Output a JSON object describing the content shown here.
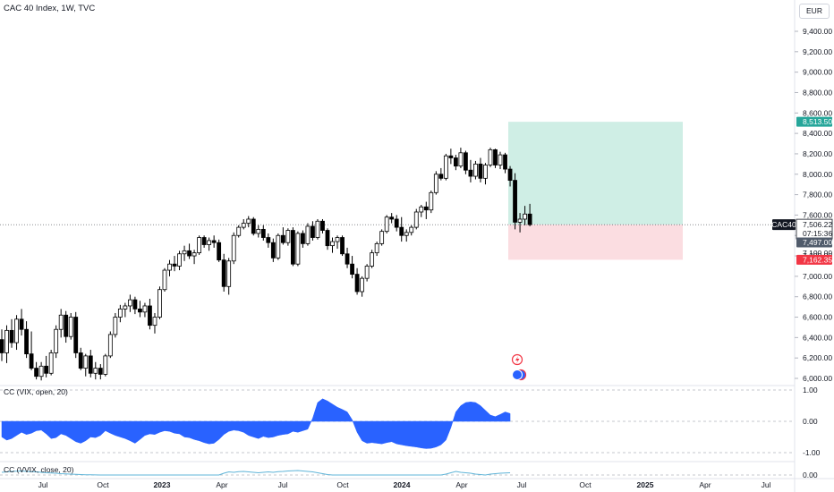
{
  "header": {
    "title": "CAC 40 Index, 1W, TVC",
    "currency": "EUR"
  },
  "indicators": [
    {
      "label": "CC (VIX, open, 20)"
    },
    {
      "label": "CC (VVIX, close, 20)"
    }
  ],
  "price_tags": {
    "symbol": "CAC40",
    "last_price": "7,506.22",
    "countdown": "07:15:36",
    "level_1": "7,497.00",
    "target": "8,513.50",
    "stop": "7,162.35",
    "hidden": "7,100.00"
  },
  "colors": {
    "up": "#ffffff",
    "down": "#000000",
    "candle_outline": "#000000",
    "profit_zone": "#cfeee5",
    "loss_zone": "#fbdde1",
    "target_tag": "#26a69a",
    "stop_tag": "#f23645",
    "oscillator_fill": "#2962ff",
    "vvix_line": "#5fb4d8",
    "grid_dashed": "#b2b5be"
  },
  "chart_data": [
    {
      "type": "candlestick",
      "title": "CAC 40 Index, 1W, TVC",
      "y_axis_ticks": [
        "9,400.00",
        "9,200.00",
        "9,000.00",
        "8,800.00",
        "8,600.00",
        "8,400.00",
        "8,200.00",
        "8,000.00",
        "7,800.00",
        "7,600.00",
        "7,400.00",
        "7,200.00",
        "7,000.00",
        "6,800.00",
        "6,600.00",
        "6,400.00",
        "6,200.00",
        "6,000.00"
      ],
      "x_axis_ticks": [
        "Jul",
        "Oct",
        "2023",
        "Apr",
        "Jul",
        "Oct",
        "2024",
        "Apr",
        "Jul",
        "Oct",
        "2025",
        "Apr",
        "Jul"
      ],
      "ylim": [
        5960,
        9520
      ],
      "series": [
        {
          "ohlc": [
            [
              6380,
              6480,
              6170,
              6250
            ],
            [
              6250,
              6520,
              6150,
              6470
            ],
            [
              6470,
              6580,
              6300,
              6350
            ],
            [
              6350,
              6620,
              6280,
              6580
            ],
            [
              6580,
              6680,
              6420,
              6480
            ],
            [
              6480,
              6560,
              6200,
              6240
            ],
            [
              6240,
              6460,
              6080,
              6100
            ],
            [
              6100,
              6160,
              5990,
              6020
            ],
            [
              6020,
              6160,
              5980,
              6120
            ],
            [
              6120,
              6220,
              6010,
              6050
            ],
            [
              6050,
              6280,
              6030,
              6250
            ],
            [
              6250,
              6520,
              6200,
              6480
            ],
            [
              6480,
              6680,
              6400,
              6620
            ],
            [
              6620,
              6660,
              6350,
              6410
            ],
            [
              6410,
              6640,
              6380,
              6600
            ],
            [
              6600,
              6650,
              6200,
              6250
            ],
            [
              6250,
              6300,
              6080,
              6100
            ],
            [
              6100,
              6240,
              6020,
              6220
            ],
            [
              6220,
              6280,
              6010,
              6050
            ],
            [
              6050,
              6160,
              5990,
              6100
            ],
            [
              6100,
              6140,
              5990,
              6040
            ],
            [
              6040,
              6240,
              6020,
              6220
            ],
            [
              6220,
              6460,
              6200,
              6430
            ],
            [
              6430,
              6640,
              6400,
              6600
            ],
            [
              6600,
              6720,
              6550,
              6680
            ],
            [
              6680,
              6740,
              6600,
              6710
            ],
            [
              6710,
              6820,
              6650,
              6770
            ],
            [
              6770,
              6800,
              6630,
              6680
            ],
            [
              6680,
              6760,
              6600,
              6650
            ],
            [
              6650,
              6740,
              6600,
              6710
            ],
            [
              6710,
              6780,
              6480,
              6520
            ],
            [
              6520,
              6640,
              6440,
              6600
            ],
            [
              6600,
              6900,
              6580,
              6870
            ],
            [
              6870,
              7080,
              6850,
              7060
            ],
            [
              7060,
              7160,
              7000,
              7120
            ],
            [
              7120,
              7200,
              7050,
              7100
            ],
            [
              7100,
              7250,
              7060,
              7220
            ],
            [
              7220,
              7300,
              7150,
              7250
            ],
            [
              7250,
              7320,
              7170,
              7200
            ],
            [
              7200,
              7260,
              7120,
              7230
            ],
            [
              7230,
              7400,
              7210,
              7380
            ],
            [
              7380,
              7400,
              7280,
              7310
            ],
            [
              7310,
              7380,
              7250,
              7350
            ],
            [
              7350,
              7400,
              7280,
              7330
            ],
            [
              7330,
              7360,
              7140,
              7160
            ],
            [
              7160,
              7220,
              6850,
              6900
            ],
            [
              6900,
              7180,
              6820,
              7150
            ],
            [
              7150,
              7430,
              7120,
              7400
            ],
            [
              7400,
              7500,
              7380,
              7480
            ],
            [
              7480,
              7560,
              7460,
              7520
            ],
            [
              7520,
              7590,
              7480,
              7560
            ],
            [
              7560,
              7580,
              7400,
              7420
            ],
            [
              7420,
              7500,
              7380,
              7460
            ],
            [
              7460,
              7500,
              7350,
              7380
            ],
            [
              7380,
              7420,
              7280,
              7330
            ],
            [
              7330,
              7370,
              7140,
              7180
            ],
            [
              7180,
              7420,
              7160,
              7400
            ],
            [
              7400,
              7480,
              7310,
              7330
            ],
            [
              7330,
              7470,
              7300,
              7450
            ],
            [
              7450,
              7480,
              7100,
              7120
            ],
            [
              7120,
              7440,
              7100,
              7420
            ],
            [
              7420,
              7450,
              7280,
              7320
            ],
            [
              7320,
              7520,
              7300,
              7490
            ],
            [
              7490,
              7540,
              7350,
              7380
            ],
            [
              7380,
              7560,
              7360,
              7540
            ],
            [
              7540,
              7560,
              7420,
              7450
            ],
            [
              7450,
              7470,
              7260,
              7300
            ],
            [
              7300,
              7380,
              7230,
              7340
            ],
            [
              7340,
              7400,
              7270,
              7380
            ],
            [
              7380,
              7400,
              7200,
              7220
            ],
            [
              7220,
              7280,
              7080,
              7120
            ],
            [
              7120,
              7200,
              6980,
              7020
            ],
            [
              7020,
              7080,
              6820,
              6850
            ],
            [
              6850,
              7000,
              6800,
              6980
            ],
            [
              6980,
              7120,
              6950,
              7100
            ],
            [
              7100,
              7260,
              7080,
              7230
            ],
            [
              7230,
              7340,
              7200,
              7320
            ],
            [
              7320,
              7460,
              7300,
              7440
            ],
            [
              7440,
              7600,
              7420,
              7580
            ],
            [
              7580,
              7620,
              7520,
              7560
            ],
            [
              7560,
              7600,
              7440,
              7480
            ],
            [
              7480,
              7580,
              7340,
              7400
            ],
            [
              7400,
              7460,
              7340,
              7430
            ],
            [
              7430,
              7500,
              7400,
              7480
            ],
            [
              7480,
              7660,
              7460,
              7630
            ],
            [
              7630,
              7700,
              7580,
              7680
            ],
            [
              7680,
              7730,
              7560,
              7650
            ],
            [
              7650,
              7840,
              7620,
              7820
            ],
            [
              7820,
              8030,
              7800,
              8000
            ],
            [
              8000,
              8060,
              7940,
              7960
            ],
            [
              7960,
              8200,
              7940,
              8180
            ],
            [
              8180,
              8250,
              8100,
              8160
            ],
            [
              8160,
              8190,
              8040,
              8080
            ],
            [
              8080,
              8260,
              8060,
              8210
            ],
            [
              8210,
              8230,
              8000,
              8040
            ],
            [
              8040,
              8140,
              7920,
              7980
            ],
            [
              7980,
              8130,
              7950,
              8100
            ],
            [
              8100,
              8160,
              7920,
              7960
            ],
            [
              7960,
              8110,
              7900,
              8090
            ],
            [
              8090,
              8260,
              8070,
              8240
            ],
            [
              8240,
              8250,
              8060,
              8090
            ],
            [
              8090,
              8220,
              8050,
              8190
            ],
            [
              8190,
              8210,
              8010,
              8050
            ],
            [
              8050,
              8080,
              7880,
              7940
            ],
            [
              7940,
              8010,
              7460,
              7530
            ],
            [
              7530,
              7620,
              7430,
              7560
            ],
            [
              7560,
              7690,
              7500,
              7610
            ],
            [
              7610,
              7710,
              7490,
              7506.22
            ]
          ]
        }
      ],
      "position": {
        "target": 8513.5,
        "entry": 7506.22,
        "stop": 7162.35
      }
    },
    {
      "type": "area",
      "title": "CC (VIX, open, 20)",
      "y_axis_ticks": [
        "1.00",
        "0.00",
        "-1.00"
      ],
      "ylim": [
        -1.25,
        1.25
      ],
      "values": [
        -0.5,
        -0.6,
        -0.55,
        -0.45,
        -0.35,
        -0.42,
        -0.38,
        -0.3,
        -0.28,
        -0.4,
        -0.55,
        -0.52,
        -0.4,
        -0.45,
        -0.55,
        -0.65,
        -0.7,
        -0.62,
        -0.5,
        -0.52,
        -0.45,
        -0.3,
        -0.38,
        -0.45,
        -0.5,
        -0.55,
        -0.62,
        -0.7,
        -0.58,
        -0.45,
        -0.4,
        -0.42,
        -0.35,
        -0.3,
        -0.32,
        -0.38,
        -0.4,
        -0.5,
        -0.52,
        -0.58,
        -0.62,
        -0.68,
        -0.72,
        -0.7,
        -0.58,
        -0.42,
        -0.32,
        -0.28,
        -0.3,
        -0.35,
        -0.45,
        -0.5,
        -0.55,
        -0.48,
        -0.52,
        -0.5,
        -0.45,
        -0.42,
        -0.4,
        -0.32,
        -0.35,
        -0.3,
        -0.25,
        0.1,
        0.6,
        0.72,
        0.65,
        0.55,
        0.45,
        0.38,
        0.3,
        0.05,
        -0.35,
        -0.62,
        -0.7,
        -0.68,
        -0.7,
        -0.72,
        -0.68,
        -0.65,
        -0.72,
        -0.75,
        -0.78,
        -0.8,
        -0.82,
        -0.85,
        -0.87,
        -0.86,
        -0.82,
        -0.75,
        -0.6,
        -0.2,
        0.3,
        0.5,
        0.6,
        0.62,
        0.6,
        0.5,
        0.35,
        0.2,
        0.15,
        0.22,
        0.3,
        0.25
      ]
    },
    {
      "type": "line",
      "title": "CC (VVIX, close, 20)",
      "y_axis_ticks": [
        "0.00"
      ],
      "ylim": [
        -0.2,
        1.2
      ],
      "values": [
        0.3,
        0.35,
        0.4,
        0.42,
        0.45,
        0.4,
        0.38,
        0.35,
        0.3,
        0.25,
        0.22,
        0.2,
        0.15,
        0.12,
        0.1,
        0.08,
        0.05,
        0.03,
        0.02,
        0.01,
        0.0,
        0.0,
        0.0,
        0.0,
        0.0,
        0.0,
        0.0,
        0.0,
        0.0,
        0.0,
        0.0,
        0.0,
        0.0,
        0.0,
        0.0,
        0.0,
        0.0,
        0.0,
        0.0,
        0.0,
        0.0,
        0.0,
        0.0,
        0.0,
        0.0,
        0.2,
        0.35,
        0.3,
        0.38,
        0.4,
        0.35,
        0.3,
        0.25,
        0.3,
        0.35,
        0.3,
        0.38,
        0.4,
        0.45,
        0.48,
        0.5,
        0.45,
        0.4,
        0.35,
        0.25,
        0.15,
        0.05,
        0.0,
        0.0,
        0.0,
        0.0,
        0.0,
        0.0,
        0.0,
        0.0,
        0.0,
        0.0,
        0.0,
        0.0,
        0.0,
        0.0,
        0.0,
        0.0,
        0.0,
        0.0,
        0.0,
        0.0,
        0.0,
        0.0,
        0.0,
        0.1,
        0.25,
        0.4,
        0.3,
        0.25,
        0.2,
        0.1,
        0.05,
        0.0,
        0.1,
        0.15,
        0.2,
        0.22,
        0.25
      ]
    }
  ]
}
